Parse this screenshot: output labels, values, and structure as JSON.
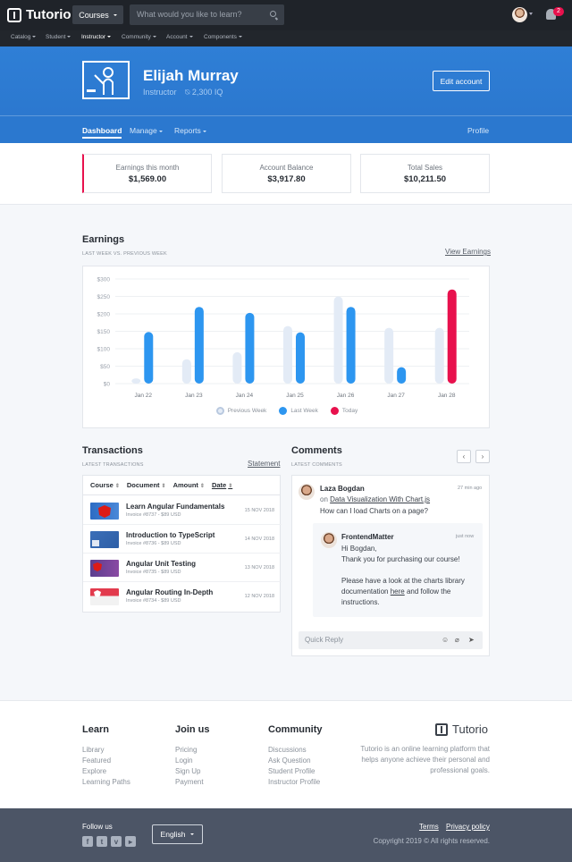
{
  "brand": {
    "name": "Tutorio"
  },
  "topbar": {
    "courses_label": "Courses",
    "search_placeholder": "What would you like to learn?",
    "notifications_count": "2"
  },
  "subnav": [
    "Catalog",
    "Student",
    "Instructor",
    "Community",
    "Account",
    "Components"
  ],
  "hero": {
    "name": "Elijah Murray",
    "role": "Instructor",
    "iq": "2,300 IQ",
    "edit_label": "Edit account",
    "tabs": [
      "Dashboard",
      "Manage",
      "Reports"
    ],
    "profile_label": "Profile"
  },
  "stats": [
    {
      "label": "Earnings this month",
      "value": "$1,569.00"
    },
    {
      "label": "Account Balance",
      "value": "$3,917.80"
    },
    {
      "label": "Total Sales",
      "value": "$10,211.50"
    }
  ],
  "earnings": {
    "title": "Earnings",
    "subtitle": "LAST WEEK VS. PREVIOUS WEEK",
    "link": "View Earnings"
  },
  "chart_data": {
    "type": "bar",
    "categories": [
      "Jan 22",
      "Jan 23",
      "Jan 24",
      "Jan 25",
      "Jan 26",
      "Jan 27",
      "Jan 28"
    ],
    "y_ticks": [
      "$0",
      "$50",
      "$100",
      "$150",
      "$200",
      "$250",
      "$300"
    ],
    "ylim": [
      0,
      300
    ],
    "series": [
      {
        "name": "Previous Week",
        "color": "#e3ebf6",
        "values": [
          15,
          70,
          90,
          165,
          250,
          160,
          160
        ]
      },
      {
        "name": "Last Week",
        "color": "#2d96f0",
        "values": [
          148,
          220,
          203,
          147,
          220,
          47,
          null
        ]
      },
      {
        "name": "Today",
        "color": "#e8114d",
        "values": [
          null,
          null,
          null,
          null,
          null,
          null,
          270
        ]
      }
    ],
    "grid": true,
    "legend": "bottom"
  },
  "transactions": {
    "title": "Transactions",
    "subtitle": "LATEST TRANSACTIONS",
    "link": "Statement",
    "columns": [
      "Course",
      "Document",
      "Amount",
      "Date"
    ],
    "rows": [
      {
        "title": "Learn Angular Fundamentals",
        "invoice": "Invoice #8737 - $89 USD",
        "date": "15 NOV 2018"
      },
      {
        "title": "Introduction to TypeScript",
        "invoice": "Invoice #8736 - $89 USD",
        "date": "14 NOV 2018"
      },
      {
        "title": "Angular Unit Testing",
        "invoice": "Invoice #8735 - $89 USD",
        "date": "13 NOV 2018"
      },
      {
        "title": "Angular Routing In-Depth",
        "invoice": "Invoice #8734 - $89 USD",
        "date": "12 NOV 2018"
      }
    ]
  },
  "comments": {
    "title": "Comments",
    "subtitle": "LATEST COMMENTS",
    "author": "Laza Bogdan",
    "time": "27 min ago",
    "on_label": "on",
    "course_link": "Data Visualization With Chart.js",
    "question": "How can I load Charts on a page?",
    "reply_author": "FrontendMatter",
    "reply_time": "just now",
    "reply_greeting": "Hi Bogdan,",
    "reply_thanks": "Thank you for purchasing our course!",
    "reply_body_1": "Please have a look at the charts library",
    "reply_body_2a": "documentation",
    "reply_link": "here",
    "reply_body_2b": "and follow the",
    "reply_body_3": "instructions.",
    "quick_reply_placeholder": "Quick Reply"
  },
  "footer": {
    "learn": {
      "title": "Learn",
      "links": [
        "Library",
        "Featured",
        "Explore",
        "Learning Paths"
      ]
    },
    "join": {
      "title": "Join us",
      "links": [
        "Pricing",
        "Login",
        "Sign Up",
        "Payment"
      ]
    },
    "community": {
      "title": "Community",
      "links": [
        "Discussions",
        "Ask Question",
        "Student Profile",
        "Instructor Profile"
      ]
    },
    "description": "Tutorio is an online learning platform that helps anyone achieve their personal and professional goals.",
    "follow_label": "Follow us",
    "language": "English",
    "terms": "Terms",
    "privacy": "Privacy policy",
    "copyright": "Copyright 2019 © All rights reserved."
  }
}
